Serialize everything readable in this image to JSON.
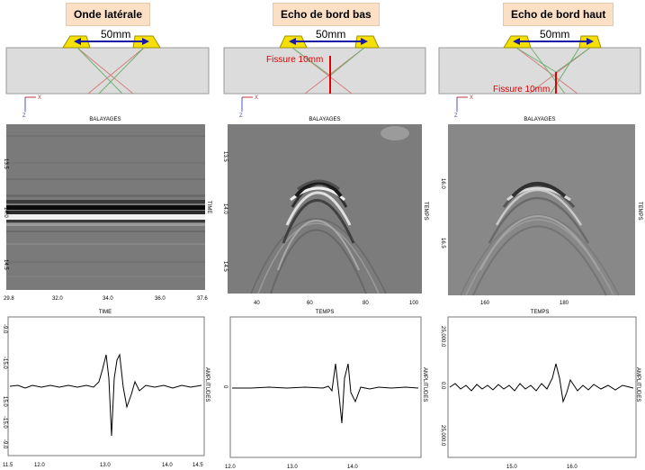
{
  "panels": [
    {
      "title": "Onde latérale",
      "distance": "50mm",
      "crack_label": "",
      "scan_axis_title": "BALAYAGES",
      "bscan_right_label": "TIME",
      "bscan_left_ticks": [
        "13.5",
        "14.0",
        "14.5"
      ],
      "bscan_x_ticks": [
        "29.8",
        "32.0",
        "34.0",
        "36.0",
        "37.6"
      ],
      "bscan_x_title": "TIME",
      "ascan_right_label": "AMPLITUDES",
      "ascan_left_ticks": [
        "-9.0",
        "-15.0",
        "15.0",
        "-15.0",
        "-9.0"
      ],
      "ascan_x_ticks": [
        "11.5",
        "12.0",
        "13.0",
        "14.0",
        "14.5"
      ],
      "ascan_x_title": ""
    },
    {
      "title": "Echo de bord bas",
      "distance": "50mm",
      "crack_label": "Fissure 10mm",
      "scan_axis_title": "BALAYAGES",
      "bscan_right_label": "TEMPS",
      "bscan_left_ticks": [
        "13.5",
        "14.0",
        "14.5"
      ],
      "bscan_x_ticks": [
        "40",
        "60",
        "80",
        "100"
      ],
      "bscan_x_title": "TEMPS",
      "ascan_right_label": "AMPLITUDES",
      "ascan_left_ticks": [
        "0"
      ],
      "ascan_x_ticks": [
        "12.0",
        "13.0",
        "14.0"
      ],
      "ascan_x_title": ""
    },
    {
      "title": "Echo de bord haut",
      "distance": "50mm",
      "crack_label": "Fissure 10mm",
      "scan_axis_title": "BALAYAGES",
      "bscan_right_label": "TEMPS",
      "bscan_left_ticks": [
        "16.0",
        "16.5"
      ],
      "bscan_x_ticks": [
        "160",
        "180"
      ],
      "bscan_x_title": "TEMPS",
      "ascan_right_label": "AMPLITUDES",
      "ascan_left_ticks": [
        "25,000.0",
        "0.0",
        "25,000.0"
      ],
      "ascan_x_ticks": [
        "15.0",
        "16.0"
      ],
      "ascan_x_title": ""
    }
  ]
}
